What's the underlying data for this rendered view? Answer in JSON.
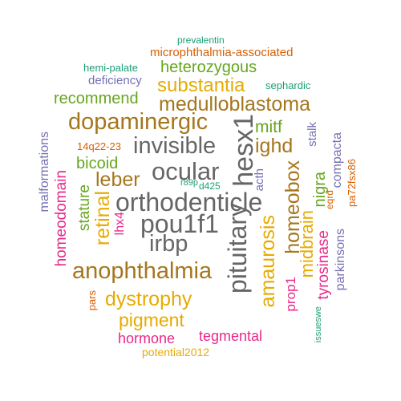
{
  "colors": {
    "background": "#ffffff",
    "teal": "#1b9e77",
    "orange": "#d95f02",
    "purple": "#7570b3",
    "magenta": "#e7298a",
    "green": "#66a61e",
    "gold": "#e6ab02",
    "brown": "#a6761d",
    "gray": "#666666"
  },
  "words": [
    {
      "text": "prevalentin",
      "color": "teal"
    },
    {
      "text": "microphthalmia-associated",
      "color": "orange"
    },
    {
      "text": "hemi-palate",
      "color": "teal"
    },
    {
      "text": "heterozygous",
      "color": "green"
    },
    {
      "text": "deficiency",
      "color": "purple"
    },
    {
      "text": "substantia",
      "color": "gold"
    },
    {
      "text": "sephardic",
      "color": "teal"
    },
    {
      "text": "recommend",
      "color": "green"
    },
    {
      "text": "medulloblastoma",
      "color": "brown"
    },
    {
      "text": "dopaminergic",
      "color": "brown"
    },
    {
      "text": "hesx1",
      "color": "gray"
    },
    {
      "text": "mitf",
      "color": "green"
    },
    {
      "text": "14q22-23",
      "color": "orange"
    },
    {
      "text": "invisible",
      "color": "gray"
    },
    {
      "text": "ighd",
      "color": "brown"
    },
    {
      "text": "stalk",
      "color": "purple"
    },
    {
      "text": "malformations",
      "color": "purple"
    },
    {
      "text": "bicoid",
      "color": "green"
    },
    {
      "text": "compacta",
      "color": "purple"
    },
    {
      "text": "ocular",
      "color": "gray"
    },
    {
      "text": "homeobox",
      "color": "brown"
    },
    {
      "text": "pa72fsx86",
      "color": "orange"
    },
    {
      "text": "leber",
      "color": "brown"
    },
    {
      "text": "nigra",
      "color": "green"
    },
    {
      "text": "r89p",
      "color": "teal"
    },
    {
      "text": "d425",
      "color": "teal"
    },
    {
      "text": "acth",
      "color": "purple"
    },
    {
      "text": "eqrd",
      "color": "orange"
    },
    {
      "text": "homeodomain",
      "color": "magenta"
    },
    {
      "text": "orthodenticle",
      "color": "gray"
    },
    {
      "text": "stature",
      "color": "green"
    },
    {
      "text": "retinal",
      "color": "gold"
    },
    {
      "text": "lhx4",
      "color": "magenta"
    },
    {
      "text": "pou1f1",
      "color": "gray"
    },
    {
      "text": "midbrain",
      "color": "gold"
    },
    {
      "text": "pituitary",
      "color": "gray"
    },
    {
      "text": "tyrosinase",
      "color": "magenta"
    },
    {
      "text": "parkinsons",
      "color": "purple"
    },
    {
      "text": "irbp",
      "color": "gray"
    },
    {
      "text": "amaurosis",
      "color": "gold"
    },
    {
      "text": "anophthalmia",
      "color": "brown"
    },
    {
      "text": "prop1",
      "color": "magenta"
    },
    {
      "text": "dystrophy",
      "color": "gold"
    },
    {
      "text": "pars",
      "color": "orange"
    },
    {
      "text": "issueswe",
      "color": "teal"
    },
    {
      "text": "pigment",
      "color": "gold"
    },
    {
      "text": "hormone",
      "color": "magenta"
    },
    {
      "text": "tegmental",
      "color": "magenta"
    },
    {
      "text": "potential2012",
      "color": "gold"
    }
  ]
}
